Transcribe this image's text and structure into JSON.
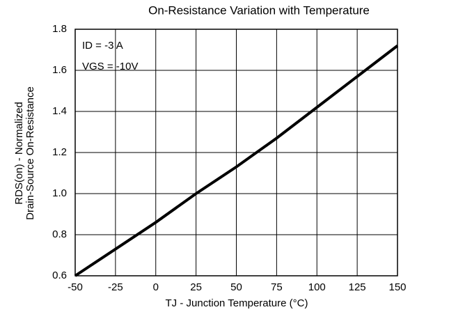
{
  "chart_data": {
    "type": "line",
    "title": "On-Resistance Variation with Temperature",
    "xlabel": "TJ - Junction Temperature (°C)",
    "ylabel": [
      "RDS(on) - Normalized",
      "Drain-Source On-Resistance"
    ],
    "annotations": [
      "ID = -3 A",
      "VGS = -10V"
    ],
    "x": [
      -50,
      -25,
      0,
      25,
      50,
      75,
      100,
      125,
      150
    ],
    "series": [
      {
        "name": "RDS(on)",
        "color": "#000000",
        "values": [
          0.6,
          0.73,
          0.86,
          1.0,
          1.13,
          1.27,
          1.42,
          1.57,
          1.72
        ]
      }
    ],
    "xlim": [
      -50,
      150
    ],
    "xticks": [
      -50,
      -25,
      0,
      25,
      50,
      75,
      100,
      125,
      150
    ],
    "ylim": [
      0.6,
      1.8
    ],
    "yticks": [
      0.6,
      0.8,
      {
        "value": 1,
        "label": "1.0"
      },
      1.2,
      1.4,
      1.6,
      1.8
    ],
    "grid": true
  }
}
